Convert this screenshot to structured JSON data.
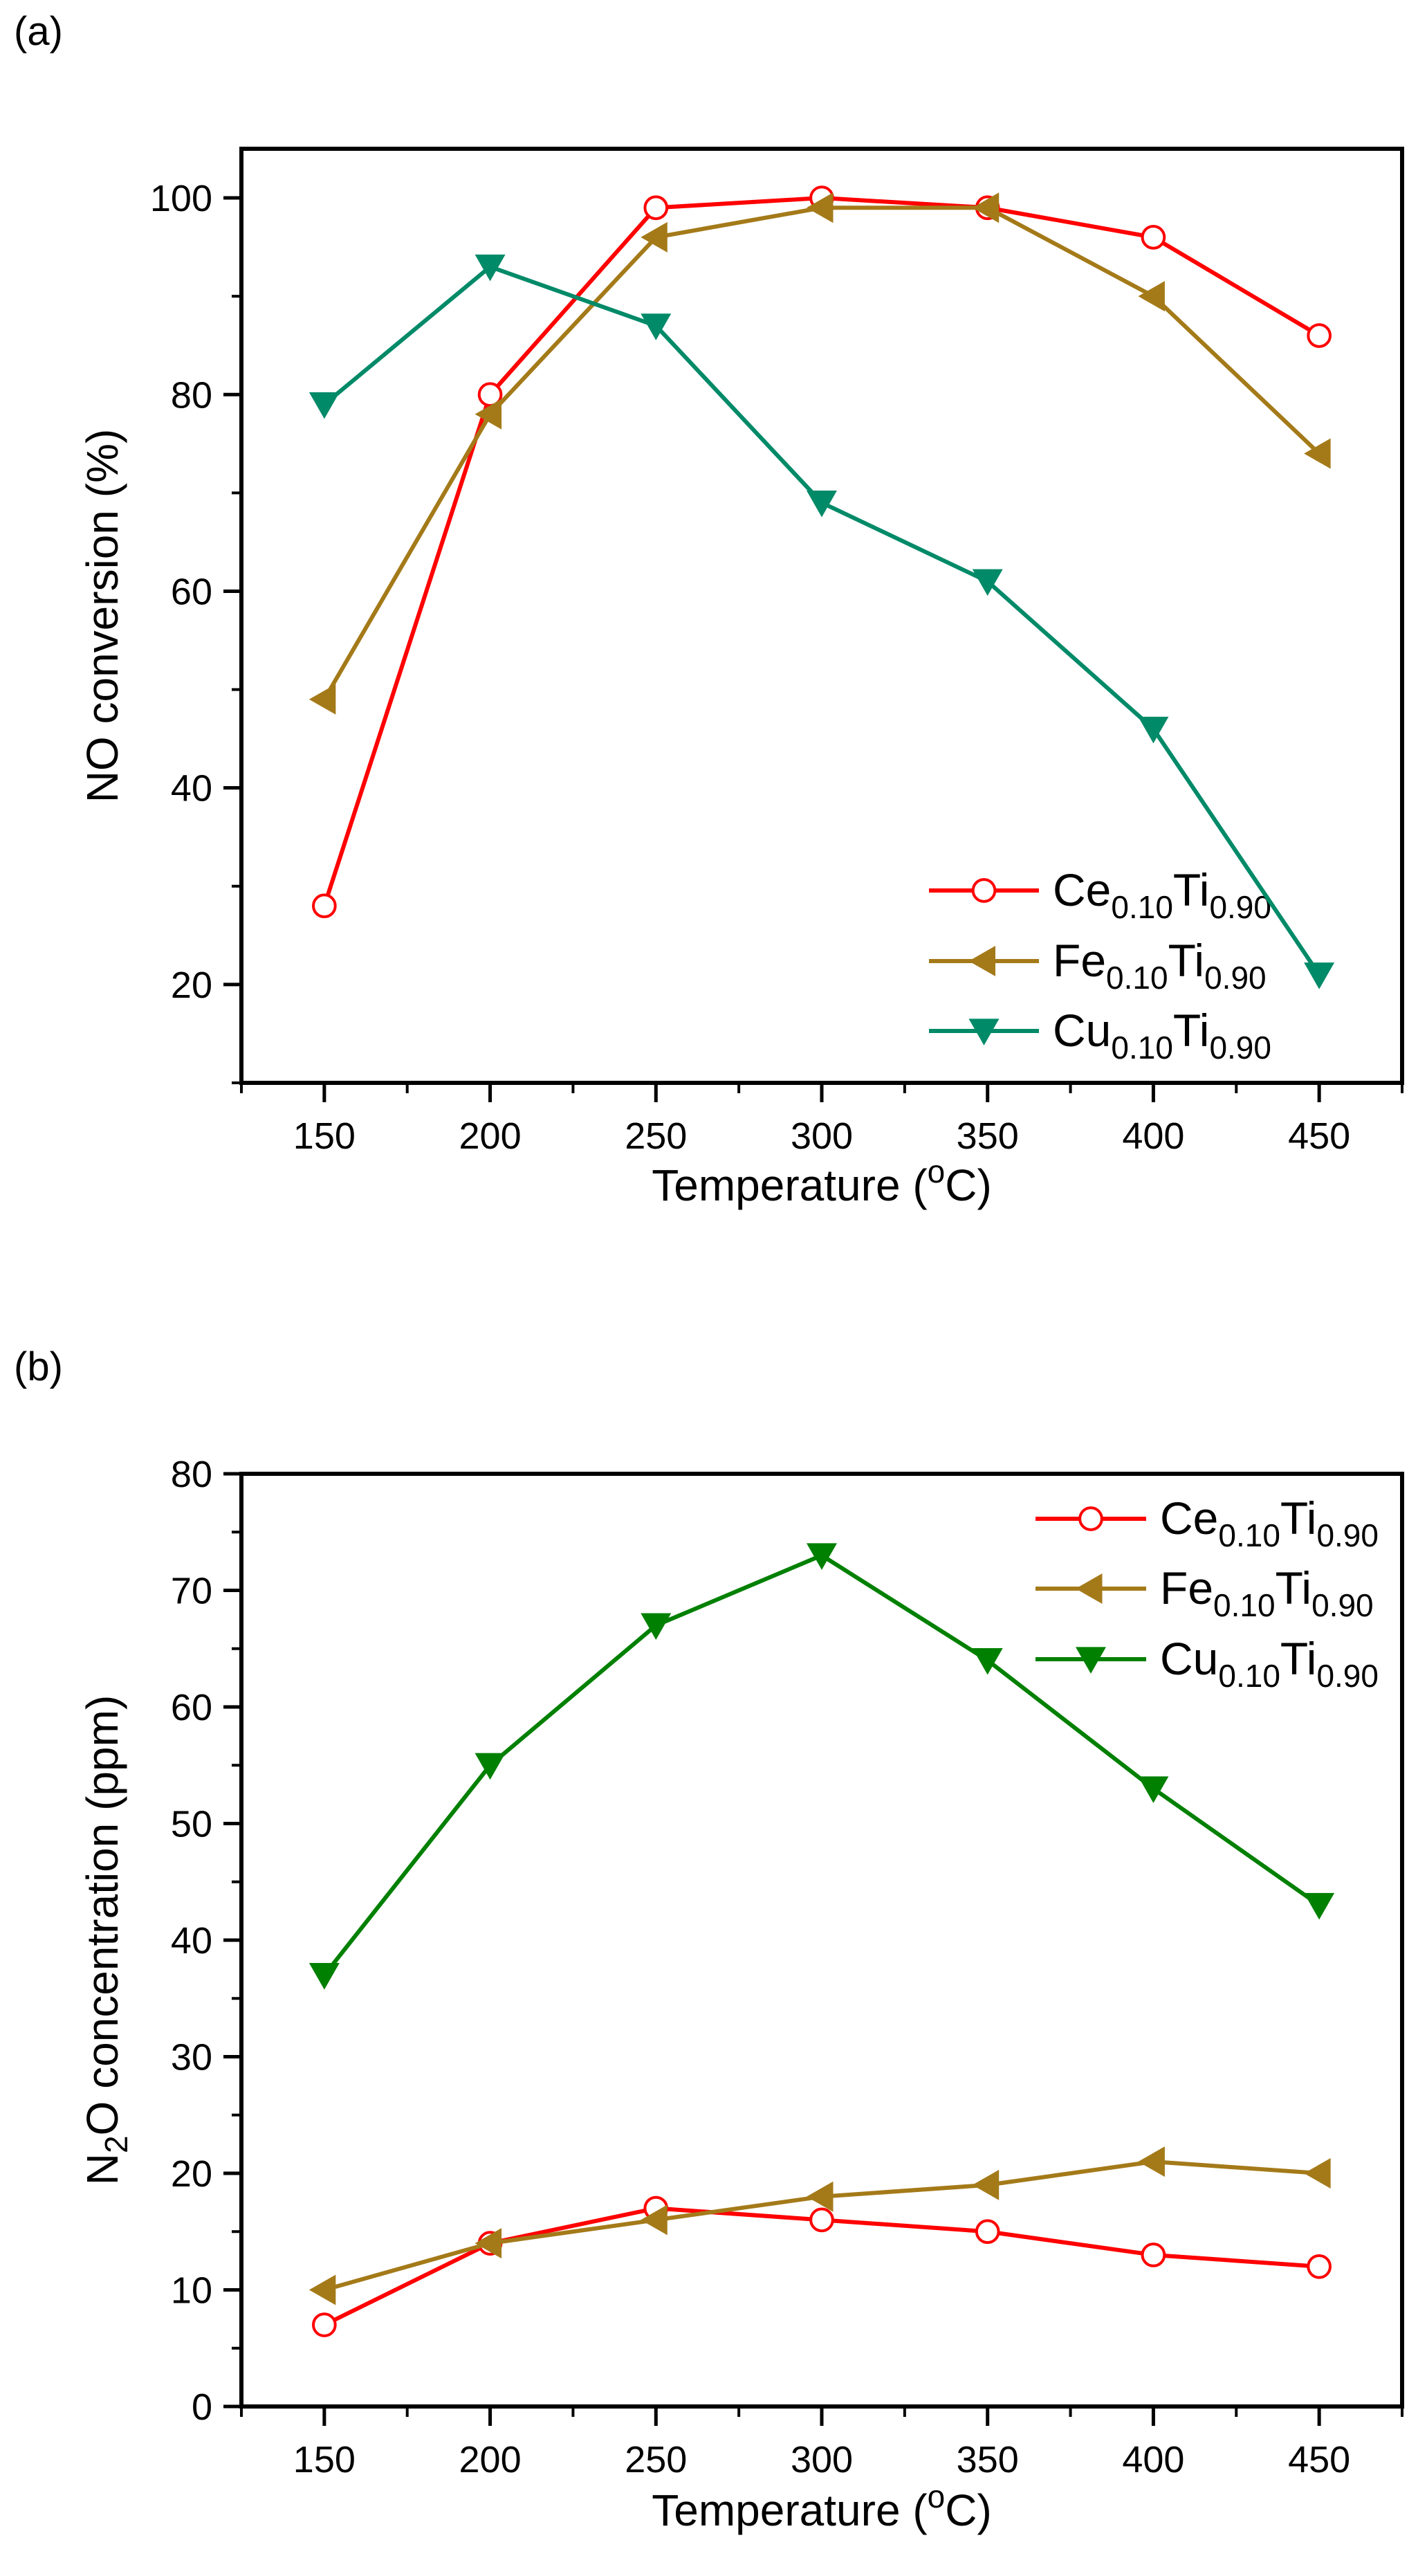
{
  "chart_data": [
    {
      "type": "line",
      "panel_label": "(a)",
      "xlabel": "Temperature (",
      "xlabel_sup": "o",
      "xlabel_end": "C)",
      "ylabel": "NO conversion (%)",
      "xlim": [
        125,
        475
      ],
      "ylim": [
        10,
        105
      ],
      "xticks": [
        150,
        200,
        250,
        300,
        350,
        400,
        450
      ],
      "yticks": [
        20,
        40,
        60,
        80,
        100
      ],
      "legend_position": "bottom-right",
      "x": [
        150,
        200,
        250,
        300,
        350,
        400,
        450
      ],
      "series": [
        {
          "name": "Ce",
          "sub1": "0.10",
          "mid": "Ti",
          "sub2": "0.90",
          "color": "#FF0000",
          "marker": "open-circle",
          "values": [
            28,
            80,
            99,
            100,
            99,
            96,
            86
          ]
        },
        {
          "name": "Fe",
          "sub1": "0.10",
          "mid": "Ti",
          "sub2": "0.90",
          "color": "#A47A19",
          "marker": "left-triangle",
          "values": [
            49,
            78,
            96,
            99,
            99,
            90,
            74
          ]
        },
        {
          "name": "Cu",
          "sub1": "0.10",
          "mid": "Ti",
          "sub2": "0.90",
          "color": "#008A68",
          "marker": "down-triangle",
          "values": [
            79,
            93,
            87,
            69,
            61,
            46,
            21
          ]
        }
      ]
    },
    {
      "type": "line",
      "panel_label": "(b)",
      "xlabel": "Temperature (",
      "xlabel_sup": "o",
      "xlabel_end": "C)",
      "ylabel": "N",
      "ylabel_sub": "2",
      "ylabel_end": "O concentration (ppm)",
      "xlim": [
        125,
        475
      ],
      "ylim": [
        0,
        80
      ],
      "xticks": [
        150,
        200,
        250,
        300,
        350,
        400,
        450
      ],
      "yticks": [
        0,
        10,
        20,
        30,
        40,
        50,
        60,
        70,
        80
      ],
      "legend_position": "top-right",
      "x": [
        150,
        200,
        250,
        300,
        350,
        400,
        450
      ],
      "series": [
        {
          "name": "Ce",
          "sub1": "0.10",
          "mid": "Ti",
          "sub2": "0.90",
          "color": "#FF0000",
          "marker": "open-circle",
          "values": [
            7,
            14,
            17,
            16,
            15,
            13,
            12
          ]
        },
        {
          "name": "Fe",
          "sub1": "0.10",
          "mid": "Ti",
          "sub2": "0.90",
          "color": "#A47A19",
          "marker": "left-triangle",
          "values": [
            10,
            14,
            16,
            18,
            19,
            21,
            20
          ]
        },
        {
          "name": "Cu",
          "sub1": "0.10",
          "mid": "Ti",
          "sub2": "0.90",
          "color": "#008000",
          "marker": "down-triangle",
          "values": [
            37,
            55,
            67,
            73,
            64,
            53,
            43
          ]
        }
      ]
    }
  ]
}
